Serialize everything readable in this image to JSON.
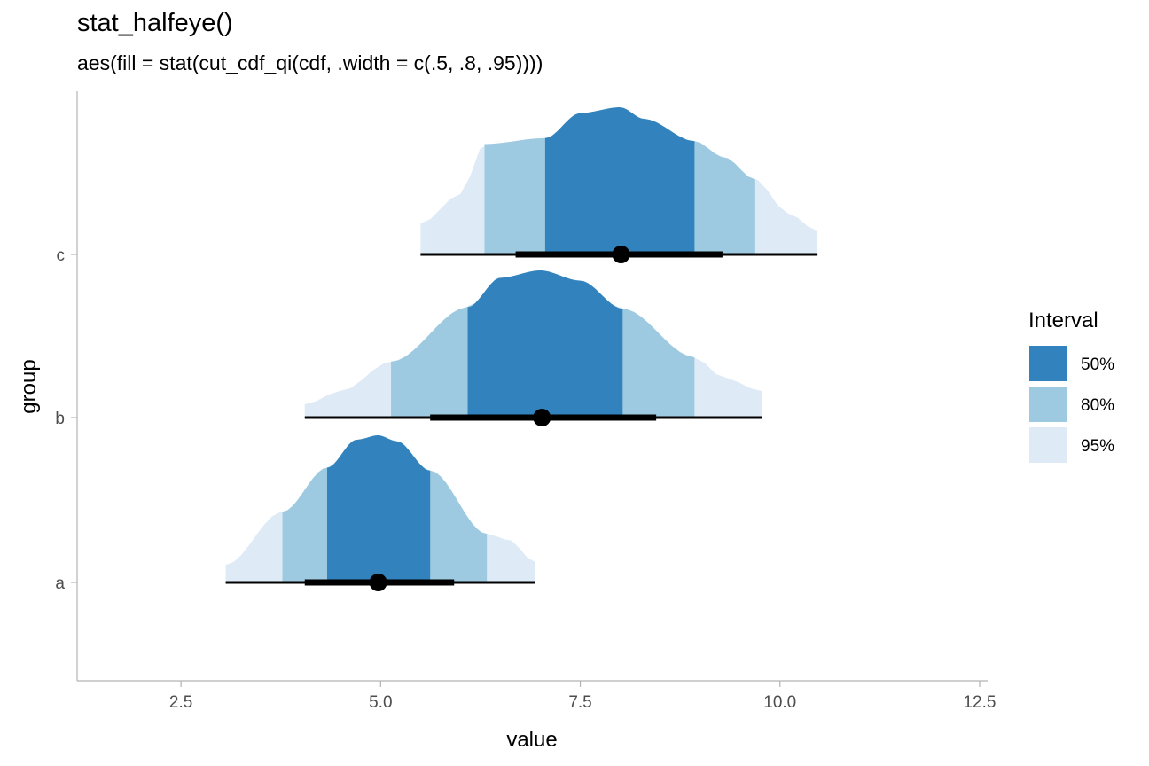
{
  "chart_data": {
    "type": "halfeye",
    "title": "stat_halfeye()",
    "subtitle": "aes(fill = stat(cut_cdf_qi(cdf, .width = c(.5, .8, .95))))",
    "xlabel": "value",
    "ylabel": "group",
    "xlim": [
      1.2,
      12.6
    ],
    "x_ticks": [
      2.5,
      5.0,
      7.5,
      10.0,
      12.5
    ],
    "x_tick_labels": [
      "2.5",
      "5.0",
      "7.5",
      "10.0",
      "12.5"
    ],
    "categories": [
      "a",
      "b",
      "c"
    ],
    "legend": {
      "title": "Interval",
      "position": "right",
      "entries": [
        {
          "label": "50%",
          "color": "#3182bd"
        },
        {
          "label": "80%",
          "color": "#9ecae1"
        },
        {
          "label": "95%",
          "color": "#deebf7"
        }
      ]
    },
    "series": [
      {
        "group": "a",
        "point": 4.97,
        "interval_66": [
          4.05,
          5.92
        ],
        "interval_95": [
          3.06,
          6.93
        ],
        "bands": {
          "50%": [
            4.33,
            5.62
          ],
          "80%": [
            3.77,
            6.33
          ],
          "95%": [
            3.06,
            6.93
          ]
        },
        "density": [
          [
            3.06,
            0.12
          ],
          [
            3.77,
            0.48
          ],
          [
            4.33,
            0.78
          ],
          [
            4.7,
            0.97
          ],
          [
            4.97,
            1.0
          ],
          [
            5.2,
            0.96
          ],
          [
            5.62,
            0.76
          ],
          [
            6.33,
            0.33
          ],
          [
            6.6,
            0.29
          ],
          [
            6.93,
            0.14
          ]
        ]
      },
      {
        "group": "b",
        "point": 7.02,
        "interval_66": [
          5.62,
          8.45
        ],
        "interval_95": [
          4.05,
          9.77
        ],
        "bands": {
          "50%": [
            6.09,
            8.03
          ],
          "80%": [
            5.13,
            8.93
          ],
          "95%": [
            4.05,
            9.77
          ]
        },
        "density": [
          [
            4.05,
            0.09
          ],
          [
            4.5,
            0.18
          ],
          [
            5.13,
            0.38
          ],
          [
            6.09,
            0.75
          ],
          [
            6.5,
            0.95
          ],
          [
            7.0,
            1.0
          ],
          [
            7.5,
            0.93
          ],
          [
            8.03,
            0.74
          ],
          [
            8.93,
            0.41
          ],
          [
            9.3,
            0.27
          ],
          [
            9.77,
            0.18
          ]
        ]
      },
      {
        "group": "c",
        "point": 8.01,
        "interval_66": [
          6.69,
          9.28
        ],
        "interval_95": [
          5.5,
          10.47
        ],
        "bands": {
          "50%": [
            7.06,
            8.93
          ],
          "80%": [
            6.3,
            9.69
          ],
          "95%": [
            5.5,
            10.47
          ]
        },
        "density": [
          [
            5.5,
            0.21
          ],
          [
            6.0,
            0.41
          ],
          [
            6.3,
            0.75
          ],
          [
            7.06,
            0.79
          ],
          [
            7.5,
            0.96
          ],
          [
            8.0,
            1.0
          ],
          [
            8.3,
            0.92
          ],
          [
            8.93,
            0.77
          ],
          [
            9.3,
            0.66
          ],
          [
            9.69,
            0.51
          ],
          [
            10.1,
            0.28
          ],
          [
            10.47,
            0.16
          ]
        ]
      }
    ]
  }
}
